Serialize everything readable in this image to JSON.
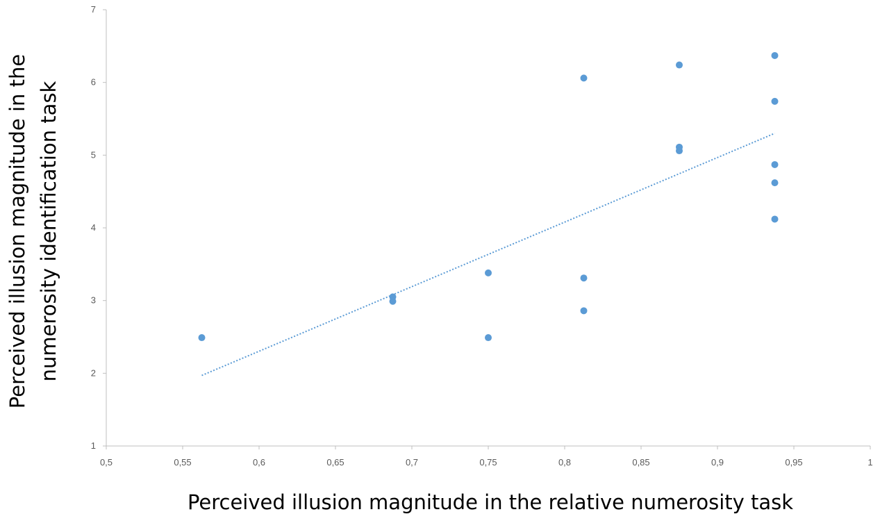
{
  "chart_data": {
    "type": "scatter",
    "title": "",
    "xlabel": "Perceived illusion magnitude in the relative numerosity task",
    "ylabel_lines": [
      "Perceived illusion magnitude in the",
      "numerosity identification task"
    ],
    "xlim": [
      0.5,
      1
    ],
    "ylim": [
      1,
      7
    ],
    "x_ticks": [
      0.5,
      0.55,
      0.6,
      0.65,
      0.7,
      0.75,
      0.8,
      0.85,
      0.9,
      0.95,
      1
    ],
    "x_tick_labels": [
      "0,5",
      "0,55",
      "0,6",
      "0,65",
      "0,7",
      "0,75",
      "0,8",
      "0,85",
      "0,9",
      "0,95",
      "1"
    ],
    "y_ticks": [
      1,
      2,
      3,
      4,
      5,
      6,
      7
    ],
    "y_tick_labels": [
      "1",
      "2",
      "3",
      "4",
      "5",
      "6",
      "7"
    ],
    "grid": false,
    "legend": "none",
    "marker_color": "#5b9bd5",
    "trendline_color": "#5b9bd5",
    "points": [
      {
        "x": 0.5625,
        "y": 2.49
      },
      {
        "x": 0.6875,
        "y": 3.05
      },
      {
        "x": 0.6875,
        "y": 2.99
      },
      {
        "x": 0.75,
        "y": 3.38
      },
      {
        "x": 0.75,
        "y": 2.49
      },
      {
        "x": 0.8125,
        "y": 6.06
      },
      {
        "x": 0.8125,
        "y": 3.31
      },
      {
        "x": 0.8125,
        "y": 2.86
      },
      {
        "x": 0.875,
        "y": 6.24
      },
      {
        "x": 0.875,
        "y": 5.11
      },
      {
        "x": 0.875,
        "y": 5.06
      },
      {
        "x": 0.9375,
        "y": 6.37
      },
      {
        "x": 0.9375,
        "y": 5.74
      },
      {
        "x": 0.9375,
        "y": 4.87
      },
      {
        "x": 0.9375,
        "y": 4.62
      },
      {
        "x": 0.9375,
        "y": 4.12
      }
    ],
    "trendline": {
      "style": "dotted",
      "x": [
        0.5625,
        0.9375
      ],
      "y": [
        1.97,
        5.3
      ]
    }
  }
}
